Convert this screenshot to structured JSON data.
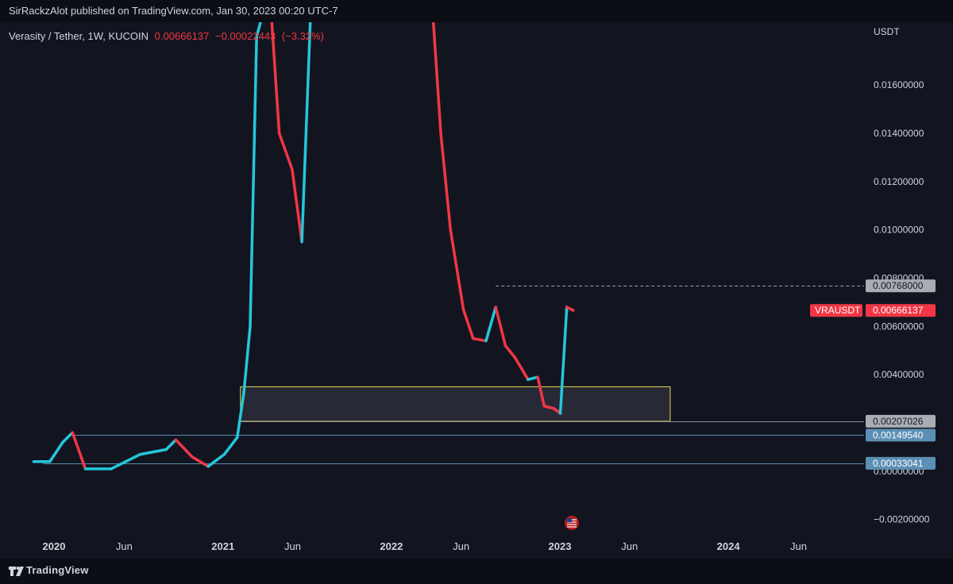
{
  "header": {
    "publisher": "SirRackzAlot published on TradingView.com, Jan 30, 2023 00:20 UTC-7"
  },
  "legend": {
    "symbol": "Verasity / Tether, 1W, KUCOIN",
    "price": "0.00666137",
    "change": "−0.00022443",
    "change_pct": "(−3.32%)"
  },
  "footer": {
    "brand": "TradingView"
  },
  "colors": {
    "background": "#121520",
    "up": "#26c6da",
    "down": "#f23645",
    "zone": "#e8d44d",
    "support": "#5b8fb3",
    "text": "#d1d4dc"
  },
  "chart_data": {
    "type": "candlestick",
    "currency": "USDT",
    "ylim": [
      -0.0026,
      0.0186
    ],
    "y_ticks": [
      {
        "value": 0.016,
        "label": "0.01600000"
      },
      {
        "value": 0.014,
        "label": "0.01400000"
      },
      {
        "value": 0.012,
        "label": "0.01200000"
      },
      {
        "value": 0.01,
        "label": "0.01000000"
      },
      {
        "value": 0.008,
        "label": "0.00800000"
      },
      {
        "value": 0.006,
        "label": "0.00600000"
      },
      {
        "value": 0.004,
        "label": "0.00400000"
      },
      {
        "value": 0.0,
        "label": "0.00000000"
      },
      {
        "value": -0.002,
        "label": "−0.00200000"
      }
    ],
    "x_ticks": [
      {
        "date": "2020-01-01",
        "label": "2020",
        "bold": true
      },
      {
        "date": "2020-06-01",
        "label": "Jun",
        "bold": false
      },
      {
        "date": "2021-01-01",
        "label": "2021",
        "bold": true
      },
      {
        "date": "2021-06-01",
        "label": "Jun",
        "bold": false
      },
      {
        "date": "2022-01-01",
        "label": "2022",
        "bold": true
      },
      {
        "date": "2022-06-01",
        "label": "Jun",
        "bold": false
      },
      {
        "date": "2023-01-01",
        "label": "2023",
        "bold": true
      },
      {
        "date": "2023-06-01",
        "label": "Jun",
        "bold": false
      },
      {
        "date": "2024-01-01",
        "label": "2024",
        "bold": true
      },
      {
        "date": "2024-06-01",
        "label": "Jun",
        "bold": false
      }
    ],
    "series": [
      {
        "name": "VRAUSDT",
        "type": "line",
        "points": [
          [
            "2019-11-18",
            0.0004
          ],
          [
            "2019-12-23",
            0.0004
          ],
          [
            "2020-01-20",
            0.0012
          ],
          [
            "2020-02-10",
            0.0016
          ],
          [
            "2020-03-09",
            0.0001
          ],
          [
            "2020-05-04",
            0.0001
          ],
          [
            "2020-07-06",
            0.0007
          ],
          [
            "2020-08-31",
            0.0009
          ],
          [
            "2020-09-21",
            0.0013
          ],
          [
            "2020-10-26",
            0.0006
          ],
          [
            "2020-11-30",
            0.0002
          ],
          [
            "2021-01-04",
            0.0007
          ],
          [
            "2021-02-01",
            0.0014
          ],
          [
            "2021-02-15",
            0.0032
          ],
          [
            "2021-03-01",
            0.006
          ],
          [
            "2021-03-15",
            0.018
          ],
          [
            "2021-04-12",
            0.02
          ],
          [
            "2021-05-03",
            0.014
          ],
          [
            "2021-05-31",
            0.0125
          ],
          [
            "2021-06-21",
            0.0095
          ],
          [
            "2021-07-12",
            0.02
          ],
          [
            "2022-03-28",
            0.02
          ],
          [
            "2022-04-18",
            0.014
          ],
          [
            "2022-05-09",
            0.01
          ],
          [
            "2022-06-06",
            0.0067
          ],
          [
            "2022-06-27",
            0.0055
          ],
          [
            "2022-07-25",
            0.0054
          ],
          [
            "2022-08-15",
            0.0068
          ],
          [
            "2022-09-05",
            0.0052
          ],
          [
            "2022-09-26",
            0.0047
          ],
          [
            "2022-10-24",
            0.0038
          ],
          [
            "2022-11-14",
            0.0039
          ],
          [
            "2022-11-28",
            0.0027
          ],
          [
            "2022-12-19",
            0.0026
          ],
          [
            "2023-01-02",
            0.0024
          ],
          [
            "2023-01-16",
            0.0068
          ],
          [
            "2023-01-30",
            0.00666137
          ]
        ]
      }
    ],
    "annotations": {
      "zone": {
        "x0": "2021-02-08",
        "x1": "2023-08-28",
        "y0": 0.00207026,
        "y1": 0.0035
      },
      "lines": [
        {
          "label": "0.00768000",
          "value": 0.00768,
          "x_start": "2022-08-15",
          "style": "dashed"
        },
        {
          "label": "0.00207026",
          "value": 0.00207026,
          "x_start": "2021-02-08",
          "style": "solid"
        },
        {
          "label": "0.00149540",
          "value": 0.0014954,
          "x_start": "2020-02-03",
          "style": "solid"
        },
        {
          "label": "0.00033041",
          "value": 0.00033041,
          "x_start": "2019-12-09",
          "style": "solid"
        }
      ],
      "last_price": {
        "symbol": "VRAUSDT",
        "label": "0.00666137",
        "value": 0.00666137
      }
    }
  }
}
